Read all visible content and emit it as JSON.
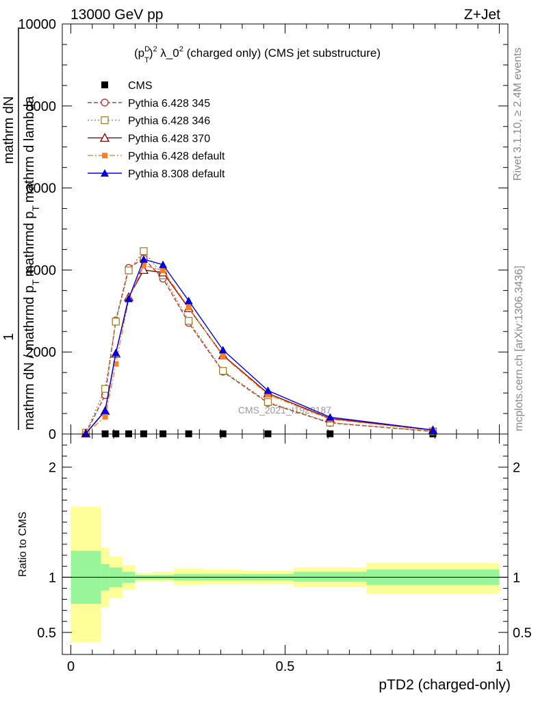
{
  "header": {
    "left": "13000 GeV pp",
    "right": "Z+Jet"
  },
  "side_text": {
    "rivet": "Rivet 3.1.10, ≥ 2.4M events",
    "mcplots": "mcplots.cern.ch [arXiv:1306.3436]"
  },
  "colors": {
    "cms": "#000000",
    "p345": "#b03030",
    "p346": "#a08030",
    "p370": "#8b0000",
    "p6def": "#ff7f24",
    "p8def": "#0000dd",
    "band_inner": "#99f599",
    "band_outer": "#ffff99"
  },
  "chart_data": [
    {
      "type": "line",
      "panel": "main",
      "title": "(p_T^D)^2 λ_0^2 (charged only) (CMS jet substructure)",
      "title_parts": {
        "p": "(p",
        "sup_d": "D",
        "sub_t": "T",
        "close": ")",
        "sup2": "2",
        "lambda": " λ_0",
        "sup2b": "2",
        "rest": " (charged only) (CMS jet substructure)"
      },
      "ylabel": "1 / mathrm dN / mathrmd p_T mathrm d p_T mathrm d lambda mathrm dN",
      "ylabel_parts": {
        "one": "1",
        "num": "mathrm dN",
        "den_a": "mathrm dN / mathrmd p",
        "den_t1": "T",
        "den_b": "mathrmd p",
        "den_t2": "T",
        "den_c": "mathrm d lambda"
      },
      "watermark": "CMS_2021_I1920187",
      "xlim": [
        -0.02,
        1.02
      ],
      "ylim": [
        0,
        10000
      ],
      "yticks": [
        0,
        2000,
        4000,
        6000,
        8000,
        10000
      ],
      "legend_position": "top-left",
      "x": [
        0.035,
        0.08,
        0.105,
        0.135,
        0.17,
        0.215,
        0.275,
        0.355,
        0.46,
        0.605,
        0.845
      ],
      "series": [
        {
          "name": "CMS",
          "key": "cms",
          "marker": "square-filled",
          "line": "none",
          "values": [
            5,
            5,
            5,
            5,
            5,
            5,
            5,
            5,
            5,
            5,
            5
          ]
        },
        {
          "name": "Pythia 6.428 345",
          "key": "p345",
          "marker": "circle-open",
          "line": "dashed",
          "values": [
            20,
            950,
            2770,
            4050,
            4280,
            3790,
            2710,
            1520,
            760,
            270,
            60
          ]
        },
        {
          "name": "Pythia 6.428 346",
          "key": "p346",
          "marker": "square-open",
          "line": "dotted",
          "values": [
            30,
            1100,
            2740,
            3990,
            4460,
            3870,
            2760,
            1540,
            780,
            280,
            65
          ]
        },
        {
          "name": "Pythia 6.428 370",
          "key": "p370",
          "marker": "triangle-open",
          "line": "solid",
          "values": [
            15,
            560,
            1960,
            3340,
            4000,
            3940,
            3070,
            1920,
            990,
            380,
            90
          ]
        },
        {
          "name": "Pythia 6.428 default",
          "key": "p6def",
          "marker": "square-filled-small",
          "line": "dashdot",
          "values": [
            10,
            420,
            1710,
            3290,
            4110,
            3990,
            3090,
            1900,
            960,
            360,
            85
          ]
        },
        {
          "name": "Pythia 8.308 default",
          "key": "p8def",
          "marker": "triangle-filled",
          "line": "solid",
          "values": [
            15,
            570,
            1980,
            3300,
            4260,
            4130,
            3250,
            2050,
            1060,
            410,
            100
          ]
        }
      ]
    },
    {
      "type": "area",
      "panel": "ratio",
      "xlabel": "pTD2 (charged-only)",
      "ylabel": "Ratio to CMS",
      "xlim": [
        -0.02,
        1.02
      ],
      "ylim": [
        0.3,
        2.3
      ],
      "xticks": [
        0,
        0.5,
        1
      ],
      "xtick_labels": [
        "0",
        "0.5",
        "1"
      ],
      "yticks": [
        0.5,
        1,
        2
      ],
      "ytick_labels": [
        "0.5",
        "1",
        "2"
      ],
      "reference": 1,
      "bins": [
        {
          "lo": 0.0,
          "hi": 0.07,
          "inner": [
            0.76,
            1.24
          ],
          "outer": [
            0.41,
            1.64
          ]
        },
        {
          "lo": 0.07,
          "hi": 0.09,
          "inner": [
            0.88,
            1.12
          ],
          "outer": [
            0.73,
            1.27
          ]
        },
        {
          "lo": 0.09,
          "hi": 0.12,
          "inner": [
            0.91,
            1.09
          ],
          "outer": [
            0.81,
            1.19
          ]
        },
        {
          "lo": 0.12,
          "hi": 0.15,
          "inner": [
            0.95,
            1.05
          ],
          "outer": [
            0.89,
            1.11
          ]
        },
        {
          "lo": 0.15,
          "hi": 0.19,
          "inner": [
            0.98,
            1.02
          ],
          "outer": [
            0.96,
            1.04
          ]
        },
        {
          "lo": 0.19,
          "hi": 0.24,
          "inner": [
            0.98,
            1.02
          ],
          "outer": [
            0.96,
            1.05
          ]
        },
        {
          "lo": 0.24,
          "hi": 0.31,
          "inner": [
            0.97,
            1.03
          ],
          "outer": [
            0.93,
            1.08
          ]
        },
        {
          "lo": 0.31,
          "hi": 0.4,
          "inner": [
            0.97,
            1.03
          ],
          "outer": [
            0.94,
            1.07
          ]
        },
        {
          "lo": 0.4,
          "hi": 0.52,
          "inner": [
            0.97,
            1.03
          ],
          "outer": [
            0.94,
            1.06
          ]
        },
        {
          "lo": 0.52,
          "hi": 0.69,
          "inner": [
            0.96,
            1.05
          ],
          "outer": [
            0.91,
            1.09
          ]
        },
        {
          "lo": 0.69,
          "hi": 1.0,
          "inner": [
            0.93,
            1.07
          ],
          "outer": [
            0.85,
            1.13
          ]
        }
      ]
    }
  ]
}
